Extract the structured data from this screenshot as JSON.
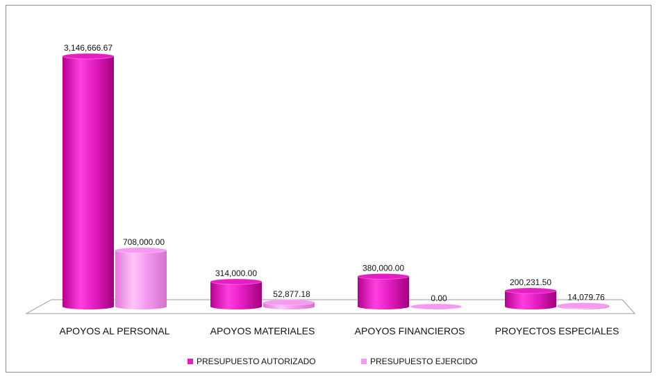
{
  "chart_data": {
    "type": "bar",
    "title": "",
    "xlabel": "",
    "ylabel": "",
    "ylim": [
      0,
      3146666.67
    ],
    "grid": false,
    "legend_position": "bottom",
    "categories": [
      "APOYOS AL PERSONAL",
      "APOYOS MATERIALES",
      "APOYOS FINANCIEROS",
      "PROYECTOS ESPECIALES"
    ],
    "series": [
      {
        "name": "PRESUPUESTO AUTORIZADO",
        "values": [
          3146666.67,
          314000.0,
          380000.0,
          200231.5
        ],
        "labels": [
          "3,146,666.67",
          "314,000.00",
          "380,000.00",
          "200,231.50"
        ],
        "color": "#e61ec4"
      },
      {
        "name": "PRESUPUESTO EJERCIDO",
        "values": [
          708000.0,
          52877.18,
          0.0,
          14079.76
        ],
        "labels": [
          "708,000.00",
          "52,877.18",
          "0.00",
          "14,079.76"
        ],
        "color": "#f59af0"
      }
    ]
  }
}
